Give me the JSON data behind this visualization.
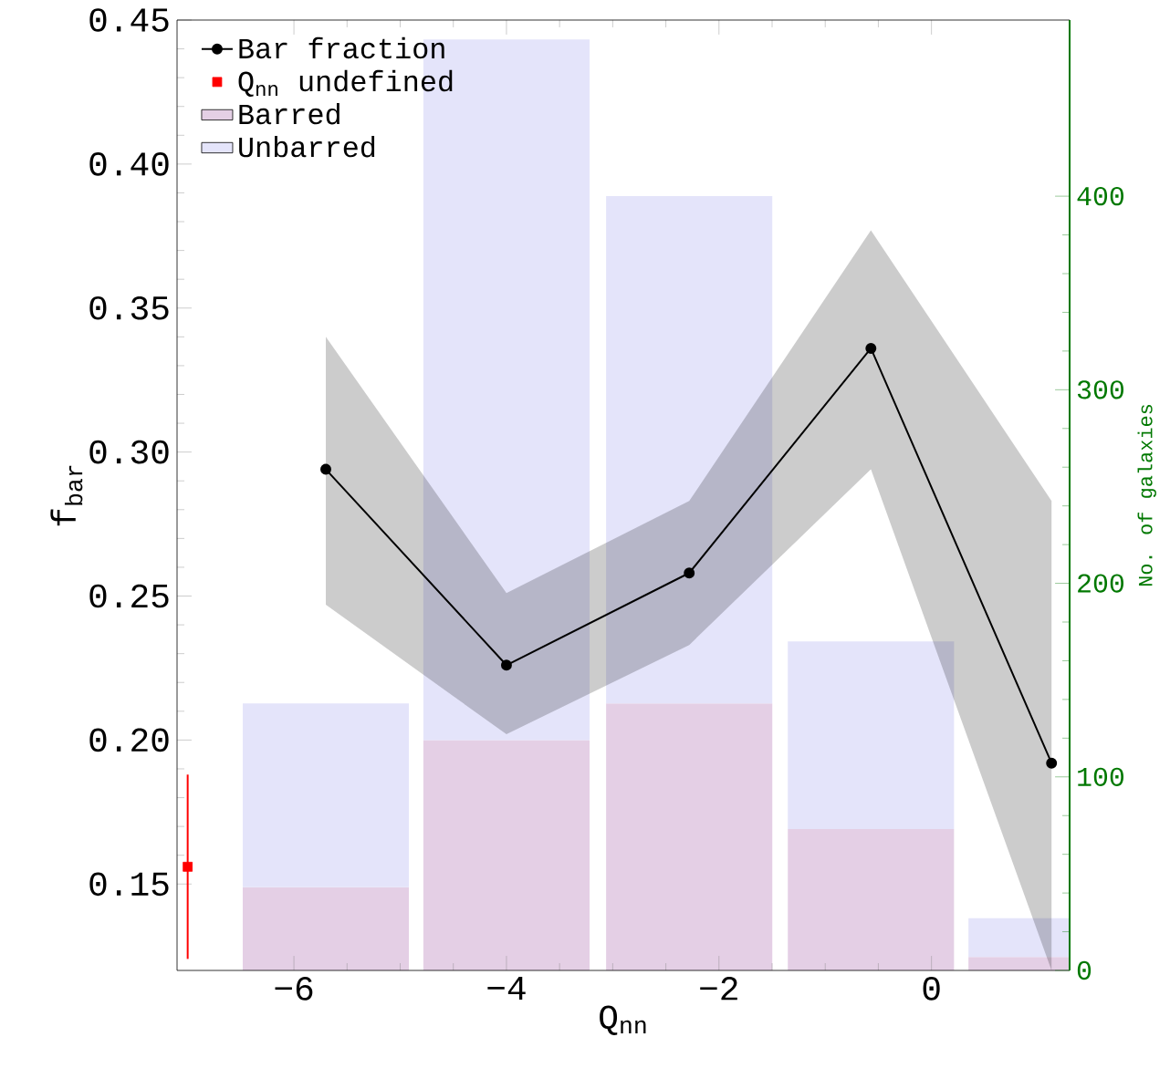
{
  "chart_data": {
    "type": "bar",
    "stacked": true,
    "xlabel": "Q$_{nn}$",
    "ylabel": "f$_{bar}$",
    "y2label": "No. of galaxies",
    "xlim": [
      -7.1,
      1.3
    ],
    "ylim": [
      0.12,
      0.45
    ],
    "y2lim": [
      0,
      491
    ],
    "xticks": [
      {
        "value": -6,
        "label": "−6"
      },
      {
        "value": -4,
        "label": "−4"
      },
      {
        "value": -2,
        "label": "−2"
      },
      {
        "value": 0,
        "label": "0"
      }
    ],
    "yticks": [
      {
        "value": 0.15,
        "label": "0.15"
      },
      {
        "value": 0.2,
        "label": "0.20"
      },
      {
        "value": 0.25,
        "label": "0.25"
      },
      {
        "value": 0.3,
        "label": "0.30"
      },
      {
        "value": 0.35,
        "label": "0.35"
      },
      {
        "value": 0.4,
        "label": "0.40"
      },
      {
        "value": 0.45,
        "label": "0.45"
      }
    ],
    "y2ticks": [
      0,
      100,
      200,
      300,
      400
    ],
    "legend": "top left",
    "series": [
      {
        "name": "Bar fraction",
        "type": "line",
        "color": "#000000",
        "marker": "circle",
        "x": [
          -5.7,
          -4.0,
          -2.28,
          -0.57,
          1.13
        ],
        "values": [
          0.294,
          0.226,
          0.258,
          0.336,
          0.192
        ],
        "lower": [
          0.247,
          0.202,
          0.233,
          0.294,
          0.12
        ],
        "upper": [
          0.34,
          0.251,
          0.283,
          0.377,
          0.283
        ]
      },
      {
        "name": "Q$_{nn}$ undefined",
        "type": "scatter",
        "color": "#ff0000",
        "marker": "square",
        "x": [
          -7.0
        ],
        "values": [
          0.156
        ],
        "errors": [
          0.032
        ]
      },
      {
        "name": "Barred",
        "axis": "y2",
        "color": "#e4cfe5",
        "x": [
          -5.7,
          -4.0,
          -2.28,
          -0.57,
          1.13
        ],
        "values": [
          43,
          119,
          138,
          73,
          7
        ]
      },
      {
        "name": "Unbarred",
        "axis": "y2",
        "color": "#e4e4fa",
        "x": [
          -5.7,
          -4.0,
          -2.28,
          -0.57,
          1.13
        ],
        "values": [
          95,
          362,
          262,
          97,
          20
        ]
      }
    ]
  }
}
